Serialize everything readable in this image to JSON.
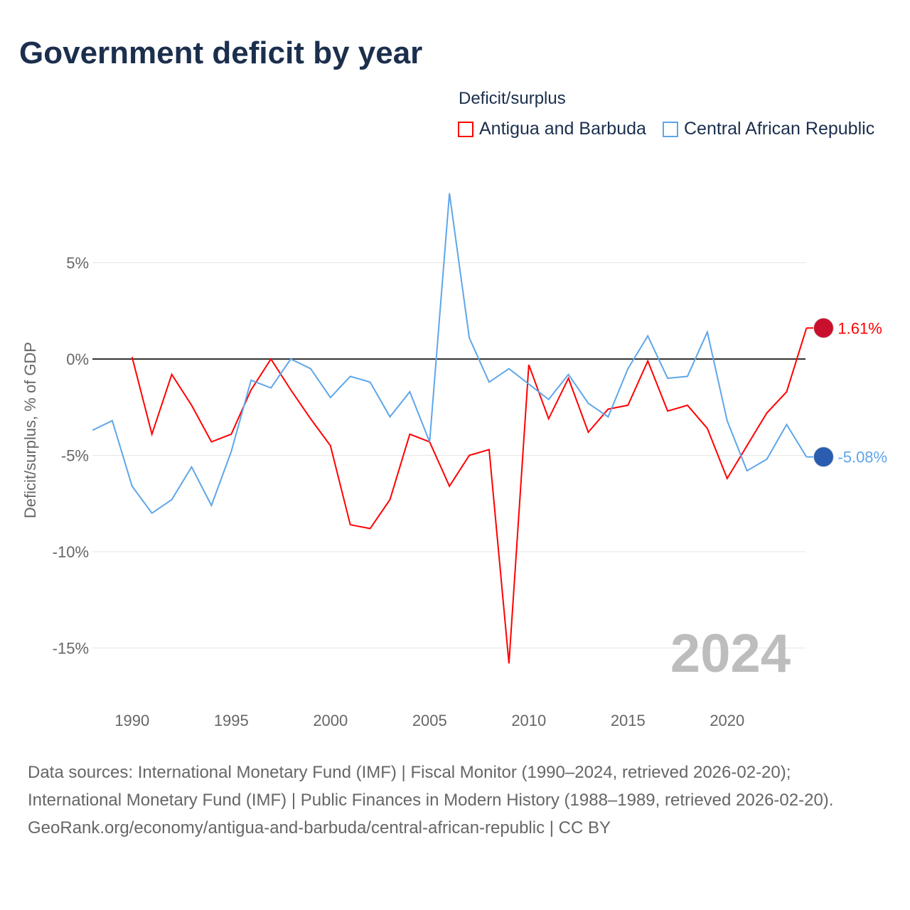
{
  "title": "Government deficit by year",
  "legend": {
    "title": "Deficit/surplus",
    "items": [
      "Antigua and Barbuda",
      "Central African Republic"
    ]
  },
  "footer": {
    "sources": "Data sources: International Monetary Fund (IMF) | Fiscal Monitor (1990–2024, retrieved 2026-02-20); International Monetary Fund (IMF) | Public Finances in Modern History (1988–1989, retrieved 2026-02-20).",
    "link": "GeoRank.org/economy/antigua-and-barbuda/central-african-republic | CC BY"
  },
  "chart_data": {
    "type": "line",
    "title": "Government deficit by year",
    "ylabel": "Deficit/surplus, % of GDP",
    "xlabel": "",
    "xlim": [
      1988,
      2024
    ],
    "ylim": [
      -17,
      10
    ],
    "yticks": [
      5,
      0,
      -5,
      -10,
      -15
    ],
    "ytick_labels": [
      "5%",
      "0%",
      "-5%",
      "-10%",
      "-15%"
    ],
    "xticks": [
      1990,
      1995,
      2000,
      2005,
      2010,
      2015,
      2020
    ],
    "year_label": "2024",
    "series": [
      {
        "name": "Antigua and Barbuda",
        "color": "#ff0000",
        "end_label": "1.61%",
        "x": [
          1990,
          1991,
          1992,
          1993,
          1994,
          1995,
          1996,
          1997,
          1998,
          1999,
          2000,
          2001,
          2002,
          2003,
          2004,
          2005,
          2006,
          2007,
          2008,
          2009,
          2010,
          2011,
          2012,
          2013,
          2014,
          2015,
          2016,
          2017,
          2018,
          2019,
          2020,
          2021,
          2022,
          2023,
          2024
        ],
        "values": [
          0.1,
          -3.9,
          -0.8,
          -2.4,
          -4.3,
          -3.9,
          -1.6,
          0.0,
          -1.6,
          -3.1,
          -4.5,
          -8.6,
          -8.8,
          -7.3,
          -3.9,
          -4.3,
          -6.6,
          -5.0,
          -4.7,
          -15.8,
          -0.3,
          -3.1,
          -1.0,
          -3.8,
          -2.6,
          -2.4,
          -0.1,
          -2.7,
          -2.4,
          -3.6,
          -6.2,
          -4.5,
          -2.8,
          -1.7,
          1.61
        ]
      },
      {
        "name": "Central African Republic",
        "color": "#5ea6ea",
        "end_label": "-5.08%",
        "x": [
          1988,
          1989,
          1990,
          1991,
          1992,
          1993,
          1994,
          1995,
          1996,
          1997,
          1998,
          1999,
          2000,
          2001,
          2002,
          2003,
          2004,
          2005,
          2006,
          2007,
          2008,
          2009,
          2010,
          2011,
          2012,
          2013,
          2014,
          2015,
          2016,
          2017,
          2018,
          2019,
          2020,
          2021,
          2022,
          2023,
          2024
        ],
        "values": [
          -3.7,
          -3.2,
          -6.6,
          -8.0,
          -7.3,
          -5.6,
          -7.6,
          -4.8,
          -1.1,
          -1.5,
          0.0,
          -0.5,
          -2.0,
          -0.9,
          -1.2,
          -3.0,
          -1.7,
          -4.3,
          8.6,
          1.1,
          -1.2,
          -0.5,
          -1.3,
          -2.1,
          -0.8,
          -2.3,
          -3.0,
          -0.5,
          1.2,
          -1.0,
          -0.9,
          1.4,
          -3.2,
          -5.8,
          -5.2,
          -3.4,
          -5.08
        ]
      }
    ]
  }
}
